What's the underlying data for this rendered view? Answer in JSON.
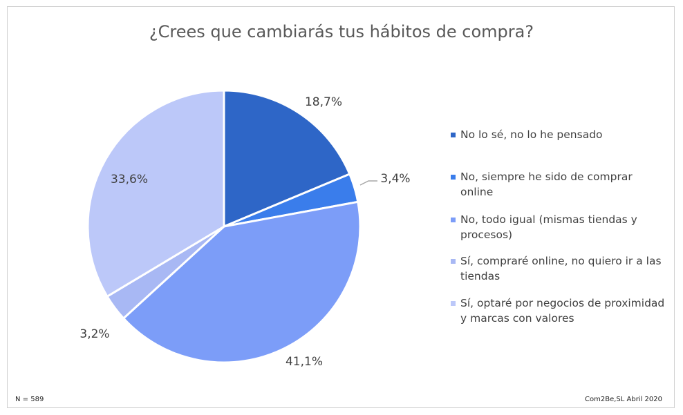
{
  "chart_data": {
    "type": "pie",
    "title": "¿Crees que cambiarás tus hábitos de compra?",
    "categories": [
      "No lo sé, no lo he pensado",
      "No, siempre he sido de comprar online",
      "No, todo igual (mismas tiendas y procesos)",
      "Sí, compraré online, no quiero ir a las tiendas",
      "Sí, optaré por negocios de proximidad y marcas con valores"
    ],
    "values": [
      18.7,
      3.4,
      41.1,
      3.2,
      33.6
    ],
    "labels": [
      "18,7%",
      "3,4%",
      "41,1%",
      "3,2%",
      "33,6%"
    ],
    "colors": [
      "#2E66C7",
      "#3A7DEB",
      "#7C9DF8",
      "#A8B8F4",
      "#BCC8F9"
    ],
    "legend_position": "right"
  },
  "footer": {
    "n": "N = 589",
    "source": "Com2Be,SL Abril 2020"
  }
}
